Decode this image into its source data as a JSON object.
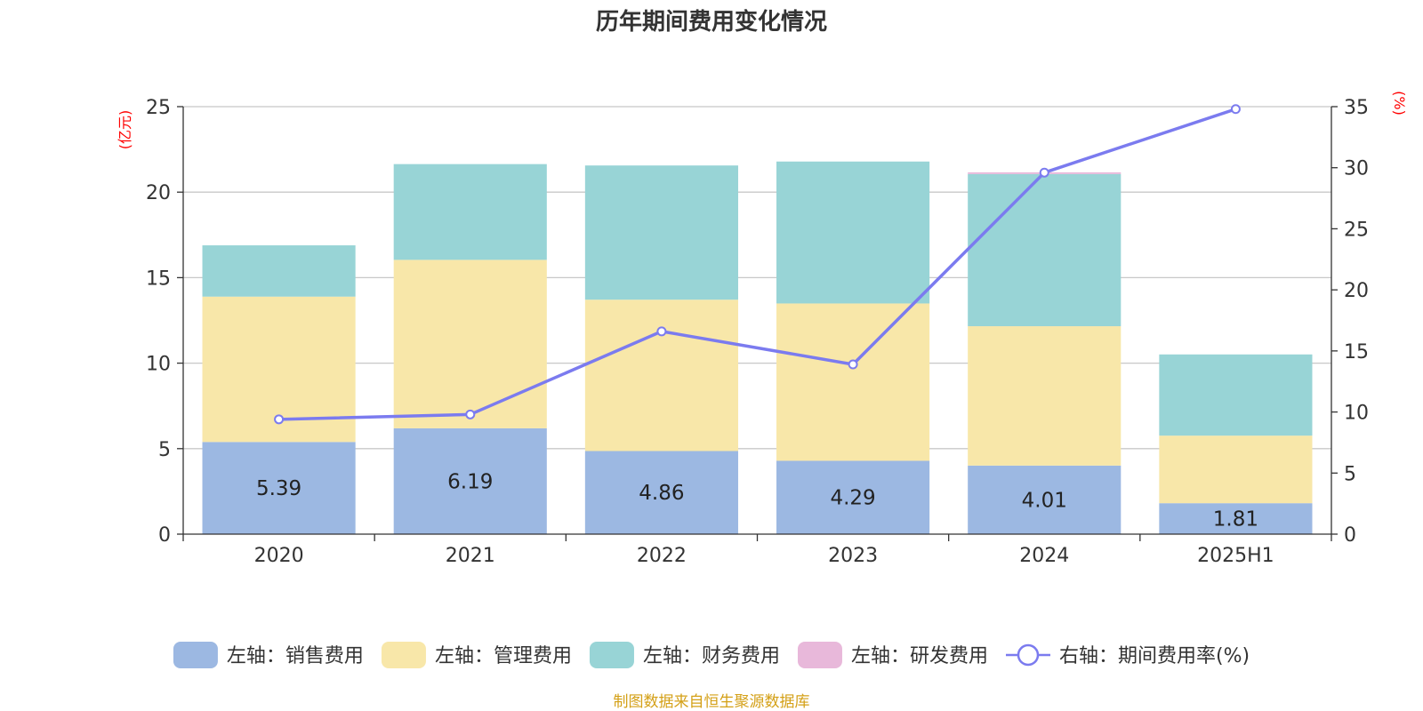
{
  "source": {
    "text": "制图数据来自恒生聚源数据库",
    "color": "#d4a017"
  },
  "chart_data": {
    "type": "bar",
    "title": "历年期间费用变化情况",
    "left_axis": {
      "unit": "(亿元)",
      "ylim": [
        0,
        25
      ],
      "ticks": [
        0,
        5,
        10,
        15,
        20,
        25
      ]
    },
    "right_axis": {
      "unit": "(%)",
      "ylim": [
        0,
        35
      ],
      "ticks": [
        0,
        5,
        10,
        15,
        20,
        25,
        30,
        35
      ]
    },
    "categories": [
      "2020",
      "2021",
      "2022",
      "2023",
      "2024",
      "2025H1"
    ],
    "grid": true,
    "legend_position": "bottom",
    "series": [
      {
        "name": "左轴：销售费用",
        "type": "bar",
        "stack": true,
        "axis": "left",
        "color": "#9cb8e2",
        "values": [
          5.39,
          6.19,
          4.86,
          4.29,
          4.01,
          1.81
        ],
        "show_labels": true
      },
      {
        "name": "左轴：管理费用",
        "type": "bar",
        "stack": true,
        "axis": "left",
        "color": "#f8e7a9",
        "values": [
          8.5,
          9.85,
          8.85,
          9.2,
          8.15,
          3.95
        ]
      },
      {
        "name": "左轴：财务费用",
        "type": "bar",
        "stack": true,
        "axis": "left",
        "color": "#98d4d6",
        "values": [
          3.0,
          5.6,
          7.85,
          8.3,
          8.9,
          4.75
        ]
      },
      {
        "name": "左轴：研发费用",
        "type": "bar",
        "stack": true,
        "axis": "left",
        "color": "#e8b8da",
        "values": [
          0,
          0,
          0,
          0,
          0.1,
          0
        ]
      },
      {
        "name": "右轴：期间费用率(%)",
        "type": "line",
        "axis": "right",
        "color": "#7b7bef",
        "values": [
          9.4,
          9.8,
          16.6,
          13.9,
          29.6,
          34.8
        ]
      }
    ]
  }
}
